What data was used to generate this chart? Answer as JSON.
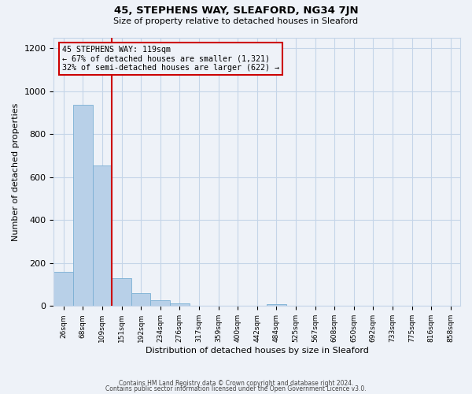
{
  "title": "45, STEPHENS WAY, SLEAFORD, NG34 7JN",
  "subtitle": "Size of property relative to detached houses in Sleaford",
  "xlabel": "Distribution of detached houses by size in Sleaford",
  "ylabel": "Number of detached properties",
  "footer_lines": [
    "Contains HM Land Registry data © Crown copyright and database right 2024.",
    "Contains public sector information licensed under the Open Government Licence v3.0."
  ],
  "bin_labels": [
    "26sqm",
    "68sqm",
    "109sqm",
    "151sqm",
    "192sqm",
    "234sqm",
    "276sqm",
    "317sqm",
    "359sqm",
    "400sqm",
    "442sqm",
    "484sqm",
    "525sqm",
    "567sqm",
    "608sqm",
    "650sqm",
    "692sqm",
    "733sqm",
    "775sqm",
    "816sqm",
    "858sqm"
  ],
  "bar_values": [
    160,
    935,
    655,
    130,
    60,
    28,
    12,
    0,
    0,
    0,
    0,
    10,
    0,
    0,
    0,
    0,
    0,
    0,
    0,
    0,
    0
  ],
  "bar_color": "#b8d0e8",
  "bar_edgecolor": "#7aafd4",
  "ylim": [
    0,
    1250
  ],
  "yticks": [
    0,
    200,
    400,
    600,
    800,
    1000,
    1200
  ],
  "annotation_box_text": "45 STEPHENS WAY: 119sqm\n← 67% of detached houses are smaller (1,321)\n32% of semi-detached houses are larger (622) →",
  "vline_bin_index": 2,
  "vline_color": "#cc0000",
  "background_color": "#eef2f8",
  "grid_color": "#c5d5e8"
}
